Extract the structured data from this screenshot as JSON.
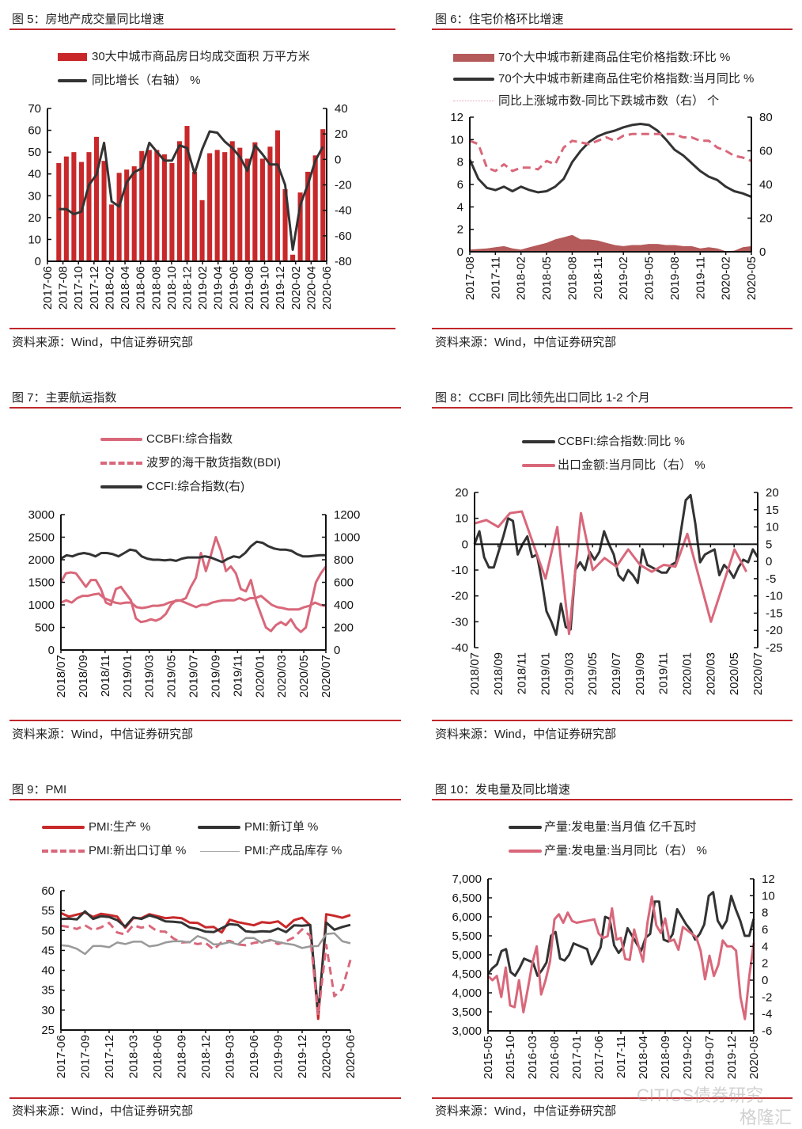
{
  "panels": [
    {
      "title": "图 5：房地产成交量同比增速",
      "source": "资料来源：Wind，中信证券研究部"
    },
    {
      "title": "图 6：住宅价格环比增速",
      "source": "资料来源：Wind，中信证券研究部"
    },
    {
      "title": "图 7：主要航运指数",
      "source": "资料来源：Wind，中信证券研究部"
    },
    {
      "title": "图 8：CCBFI 同比领先出口同比 1-2 个月",
      "source": "资料来源：Wind，中信证券研究部"
    },
    {
      "title": "图 9：PMI",
      "source": "资料来源：Wind，中信证券研究部"
    },
    {
      "title": "图 10：发电量及同比增速",
      "source": "资料来源：Wind，中信证券研究部"
    }
  ],
  "watermark": {
    "text1": "CITICS债券研究",
    "text2": "格隆汇"
  },
  "chart_data": [
    {
      "type": "bar",
      "x_labels": [
        "2017-06",
        "2017-08",
        "2017-10",
        "2017-12",
        "2018-02",
        "2018-04",
        "2018-06",
        "2018-08",
        "2018-10",
        "2018-12",
        "2019-02",
        "2019-04",
        "2019-06",
        "2019-08",
        "2019-10",
        "2019-12",
        "2020-02",
        "2020-04",
        "2020-06"
      ],
      "y_left": {
        "min": 0,
        "max": 70,
        "ticks": [
          "0",
          "10",
          "20",
          "30",
          "40",
          "50",
          "60",
          "70"
        ]
      },
      "y_right": {
        "min": -80,
        "max": 40,
        "ticks": [
          "-80",
          "-60",
          "-40",
          "-20",
          "0",
          "20",
          "40"
        ]
      },
      "series": [
        {
          "name": "30大中城市商品房日均成交面积 万平方米",
          "axis": "left",
          "style": "bar",
          "color": "#c8282a",
          "values": [
            null,
            45,
            48,
            50,
            45.5,
            50,
            57,
            46,
            26,
            40.5,
            42,
            43.5,
            50.5,
            51,
            51,
            49,
            45,
            55,
            62,
            41,
            28,
            49.5,
            51,
            50,
            55,
            52,
            47,
            54.5,
            47,
            52.5,
            60,
            33,
            3,
            31.5,
            41,
            48.5,
            60.5
          ]
        },
        {
          "name": "同比增长（右轴） %",
          "axis": "right",
          "style": "line",
          "color": "#333333",
          "values": [
            null,
            -39,
            -39,
            -43,
            -41,
            -20,
            -12,
            13,
            -33,
            -37,
            -18,
            -10,
            -7,
            13,
            6,
            -1,
            -1,
            11,
            9,
            -11,
            8,
            22,
            21,
            14,
            9,
            2,
            -9,
            11,
            4,
            -4,
            -4,
            -20,
            -71,
            -36,
            -20,
            -1,
            10
          ]
        }
      ]
    },
    {
      "type": "line",
      "x_labels": [
        "2017-08",
        "2017-11",
        "2018-02",
        "2018-05",
        "2018-08",
        "2018-11",
        "2019-02",
        "2019-05",
        "2019-08",
        "2019-11",
        "2020-02",
        "2020-05"
      ],
      "y_left": {
        "min": 0,
        "max": 12,
        "ticks": [
          "0",
          "2",
          "4",
          "6",
          "8",
          "10",
          "12"
        ]
      },
      "y_right": {
        "min": 0,
        "max": 80,
        "ticks": [
          "0",
          "20",
          "40",
          "60",
          "80"
        ]
      },
      "series": [
        {
          "name": "70个大中城市新建商品住宅价格指数:环比 %",
          "axis": "left",
          "style": "area",
          "color": "#b55a5a",
          "values": [
            0.2,
            0.25,
            0.3,
            0.4,
            0.5,
            0.3,
            0.2,
            0.4,
            0.6,
            0.8,
            1.1,
            1.3,
            1.5,
            1.1,
            1.1,
            1.0,
            0.8,
            0.6,
            0.5,
            0.6,
            0.6,
            0.7,
            0.7,
            0.6,
            0.6,
            0.5,
            0.5,
            0.3,
            0.4,
            0.3,
            0.05,
            0.1,
            0.4,
            0.5
          ]
        },
        {
          "name": "70个大中城市新建商品住宅价格指数:当月同比 %",
          "axis": "left",
          "style": "line",
          "color": "#333333",
          "values": [
            8.2,
            6.5,
            5.7,
            5.5,
            5.8,
            5.4,
            5.8,
            5.5,
            5.3,
            5.4,
            5.8,
            6.5,
            8.0,
            9.0,
            9.8,
            10.3,
            10.6,
            10.8,
            11.1,
            11.3,
            11.4,
            11.3,
            10.8,
            10.0,
            9.1,
            8.6,
            7.9,
            7.2,
            6.7,
            6.4,
            5.8,
            5.4,
            5.2,
            4.9
          ]
        },
        {
          "name": "同比上涨城市数-同比下跌城市数（右） 个",
          "axis": "right",
          "style": "dash",
          "color": "#d9677a",
          "legend_style": "dot",
          "values": [
            66,
            64,
            50,
            48,
            52,
            48,
            50,
            50,
            49,
            54,
            52,
            62,
            66,
            65,
            64,
            66,
            68,
            66,
            69,
            70,
            70,
            70,
            70,
            70,
            70,
            68,
            68,
            66,
            66,
            62,
            60,
            57,
            56,
            54
          ]
        }
      ]
    },
    {
      "type": "line",
      "x_labels": [
        "2018/07",
        "2018/09",
        "2018/11",
        "2019/01",
        "2019/03",
        "2019/05",
        "2019/07",
        "2019/09",
        "2019/11",
        "2020/01",
        "2020/03",
        "2020/05",
        "2020/07"
      ],
      "y_left": {
        "min": 0,
        "max": 3000,
        "ticks": [
          "0",
          "500",
          "1000",
          "1500",
          "2000",
          "2500",
          "3000"
        ]
      },
      "y_right": {
        "min": 0,
        "max": 1200,
        "ticks": [
          "0",
          "200",
          "400",
          "600",
          "800",
          "1000",
          "1200"
        ]
      },
      "series": [
        {
          "name": "CCBFI:综合指数",
          "axis": "left",
          "style": "line",
          "color": "#d9677a",
          "values": [
            1050,
            1100,
            1050,
            1150,
            1200,
            1200,
            1230,
            1250,
            1150,
            1100,
            1050,
            1030,
            1050,
            1050,
            950,
            930,
            950,
            980,
            980,
            1000,
            1050,
            1080,
            1100,
            1050,
            1000,
            950,
            1000,
            1000,
            1050,
            1080,
            1100,
            1100,
            1100,
            1150,
            1100,
            1150,
            1150,
            1200,
            1100,
            1000,
            950,
            930,
            900,
            900,
            900,
            950,
            980,
            1050,
            1000,
            970
          ]
        },
        {
          "name": "波罗的海干散货指数(BDI)",
          "axis": "left",
          "style": "line",
          "color": "#d9677a",
          "legend_style": "dash",
          "values": [
            1500,
            1700,
            1720,
            1700,
            1550,
            1400,
            1550,
            1550,
            1350,
            1050,
            1000,
            1350,
            1400,
            1250,
            1100,
            700,
            620,
            640,
            680,
            650,
            700,
            800,
            1000,
            1100,
            1100,
            1150,
            1400,
            1600,
            2150,
            1750,
            2100,
            2500,
            2200,
            1750,
            1850,
            1700,
            1350,
            1300,
            1550,
            1100,
            800,
            500,
            420,
            550,
            620,
            550,
            680,
            500,
            400,
            500,
            1000,
            1500,
            1700,
            1850
          ]
        },
        {
          "name": "CCFI:综合指数(右)",
          "axis": "right",
          "style": "line",
          "color": "#333333",
          "values": [
            810,
            840,
            830,
            850,
            860,
            850,
            830,
            860,
            860,
            850,
            830,
            860,
            890,
            880,
            830,
            810,
            800,
            800,
            795,
            800,
            790,
            810,
            820,
            820,
            820,
            830,
            820,
            800,
            780,
            810,
            830,
            820,
            860,
            920,
            960,
            950,
            920,
            900,
            890,
            890,
            880,
            850,
            830,
            830,
            835,
            840,
            840
          ]
        }
      ]
    },
    {
      "type": "line",
      "x_labels": [
        "2018/07",
        "2018/09",
        "2018/11",
        "2019/01",
        "2019/03",
        "2019/05",
        "2019/07",
        "2019/09",
        "2019/11",
        "2020/01",
        "2020/03",
        "2020/05",
        "2020/07"
      ],
      "y_left": {
        "min": -40,
        "max": 20,
        "ticks": [
          "-40",
          "-30",
          "-20",
          "-10",
          "0",
          "10",
          "20"
        ]
      },
      "y_right": {
        "min": -25,
        "max": 20,
        "ticks": [
          "-25",
          "-20",
          "-15",
          "-10",
          "-5",
          "0",
          "5",
          "10",
          "15",
          "20"
        ]
      },
      "baseline": 0,
      "series": [
        {
          "name": "CCBFI:综合指数:同比 %",
          "axis": "left",
          "style": "line",
          "color": "#333333",
          "span": 1,
          "values": [
            0,
            5,
            -5,
            -9,
            -9,
            -3,
            3,
            10,
            9,
            -4,
            0,
            3,
            -5,
            -4,
            -14,
            -26,
            -30,
            -35,
            -23,
            -32,
            -33,
            -10,
            -7,
            -10,
            -3,
            -6,
            -3,
            5,
            0,
            -4,
            -12,
            -14,
            -10,
            -12,
            -15,
            -2,
            -8,
            -9,
            -10,
            -11,
            -11,
            -8,
            -7,
            5,
            17,
            19,
            8,
            -7,
            -4,
            -3,
            -2,
            -12,
            -8,
            -10,
            -13,
            -9,
            -6,
            -7,
            -2,
            -5
          ]
        },
        {
          "name": "出口金额:当月同比（右） %",
          "axis": "right",
          "style": "line",
          "color": "#d9677a",
          "span": 0.96,
          "values": [
            11,
            12,
            10,
            14,
            14.5,
            null,
            -5,
            10,
            -21,
            14,
            -2.5,
            1,
            -1.5,
            3.5,
            -1,
            -3,
            -1,
            -1.5,
            8,
            null,
            -17.5,
            null,
            3.5,
            -3
          ]
        }
      ]
    },
    {
      "type": "line",
      "x_labels": [
        "2017-06",
        "2017-09",
        "2017-12",
        "2018-03",
        "2018-06",
        "2018-09",
        "2018-12",
        "2019-03",
        "2019-06",
        "2019-09",
        "2019-12",
        "2020-03",
        "2020-06"
      ],
      "y_left": {
        "min": 25,
        "max": 60,
        "ticks": [
          "25",
          "30",
          "35",
          "40",
          "45",
          "50",
          "55",
          "60"
        ]
      },
      "series": [
        {
          "name": "PMI:生产 %",
          "axis": "left",
          "style": "line",
          "color": "#c8282a",
          "values": [
            54.4,
            53.5,
            54.0,
            54.5,
            53.4,
            54.2,
            53.9,
            53.5,
            50.7,
            53.1,
            53.1,
            54.1,
            53.6,
            53.1,
            53.3,
            53.1,
            52.0,
            51.9,
            50.8,
            50.9,
            49.5,
            52.7,
            52.1,
            51.7,
            51.3,
            52.1,
            51.9,
            52.3,
            50.8,
            52.6,
            53.2,
            51.3,
            27.8,
            54.1,
            53.7,
            53.2,
            53.9
          ]
        },
        {
          "name": "PMI:新订单 %",
          "axis": "left",
          "style": "line",
          "color": "#333333",
          "values": [
            52.9,
            53.0,
            52.8,
            54.8,
            52.9,
            53.6,
            53.4,
            52.6,
            51.0,
            53.3,
            52.9,
            53.8,
            53.2,
            52.3,
            52.2,
            52.0,
            50.8,
            50.4,
            49.7,
            49.6,
            50.6,
            51.6,
            51.4,
            49.8,
            49.6,
            49.8,
            49.7,
            50.5,
            49.6,
            51.3,
            51.2,
            51.4,
            29.3,
            52.0,
            50.2,
            50.9,
            51.4
          ]
        },
        {
          "name": "PMI:新出口订单 %",
          "axis": "left",
          "style": "dash",
          "color": "#d9677a",
          "values": [
            51.2,
            50.9,
            50.4,
            51.3,
            50.1,
            50.8,
            51.9,
            49.5,
            49.0,
            51.3,
            50.7,
            51.2,
            49.8,
            49.7,
            48.0,
            47.0,
            47.1,
            46.6,
            46.9,
            45.2,
            47.1,
            47.4,
            46.5,
            46.3,
            46.9,
            47.2,
            47.5,
            46.6,
            47.3,
            48.3,
            50.3,
            48.7,
            28.7,
            46.4,
            33.5,
            35.3,
            42.6
          ]
        },
        {
          "name": "PMI:产成品库存 %",
          "axis": "left",
          "style": "thin",
          "color": "#999999",
          "values": [
            46.3,
            46.1,
            45.4,
            44.1,
            46.1,
            46.1,
            45.8,
            47.0,
            46.6,
            47.2,
            47.2,
            46.0,
            46.3,
            47.0,
            47.3,
            47.3,
            47.0,
            48.6,
            47.9,
            46.5,
            46.6,
            47.1,
            46.5,
            48.1,
            48.1,
            46.9,
            47.7,
            47.1,
            46.7,
            46.4,
            45.6,
            46.0,
            46.1,
            49.1,
            49.3,
            47.3,
            46.8
          ]
        }
      ]
    },
    {
      "type": "line",
      "x_labels": [
        "2015-05",
        "2015-10",
        "2016-03",
        "2016-08",
        "2017-01",
        "2017-06",
        "2017-11",
        "2018-04",
        "2018-09",
        "2019-02",
        "2019-07",
        "2019-12",
        "2020-05"
      ],
      "y_left": {
        "min": 3000,
        "max": 7000,
        "ticks": [
          "3,000",
          "3,500",
          "4,000",
          "4,500",
          "5,000",
          "5,500",
          "6,000",
          "6,500",
          "7,000"
        ]
      },
      "y_right": {
        "min": -6,
        "max": 12,
        "ticks": [
          "-6",
          "-4",
          "-2",
          "0",
          "2",
          "4",
          "6",
          "8",
          "10",
          "12"
        ]
      },
      "series": [
        {
          "name": "产量:发电量:当月值 亿千瓦时",
          "axis": "left",
          "style": "line",
          "color": "#333333",
          "values": [
            4500,
            4650,
            4750,
            5100,
            5150,
            4550,
            4450,
            4650,
            4900,
            4850,
            4800,
            4450,
            4600,
            4800,
            5500,
            5600,
            4900,
            4850,
            5000,
            5300,
            5250,
            5200,
            5150,
            4750,
            4950,
            5200,
            6000,
            5950,
            5250,
            5050,
            5200,
            5700,
            5500,
            5300,
            5100,
            5450,
            5550,
            6400,
            6400,
            5400,
            5350,
            5550,
            6200,
            6000,
            5800,
            5650,
            5400,
            5550,
            5800,
            6550,
            6650,
            5900,
            5700,
            5900,
            6550,
            6200,
            5900,
            5500,
            5500,
            5950
          ]
        },
        {
          "name": "产量:发电量:当月同比（右） %",
          "axis": "right",
          "style": "line",
          "color": "#d9677a",
          "values": [
            0.5,
            0,
            0.5,
            -2,
            1.5,
            -3,
            -3.2,
            0,
            -3.8,
            -1,
            2,
            4,
            -1.7,
            0,
            2.2,
            7.2,
            7.8,
            6.8,
            8,
            7,
            6.8,
            6.9,
            7,
            7.1,
            7.2,
            5.5,
            5,
            5.2,
            8.5,
            4.8,
            5,
            2.5,
            2.4,
            6,
            4,
            2.2,
            6.8,
            9.9,
            6.5,
            5.6,
            7.3,
            4.6,
            4.8,
            3.6,
            6.3,
            5.9,
            5.5,
            5.1,
            3.5,
            0.1,
            2.9,
            0.5,
            1.8,
            4.7,
            4,
            4,
            3.5,
            -2,
            -4.6,
            0.5,
            4.4
          ]
        }
      ]
    }
  ]
}
